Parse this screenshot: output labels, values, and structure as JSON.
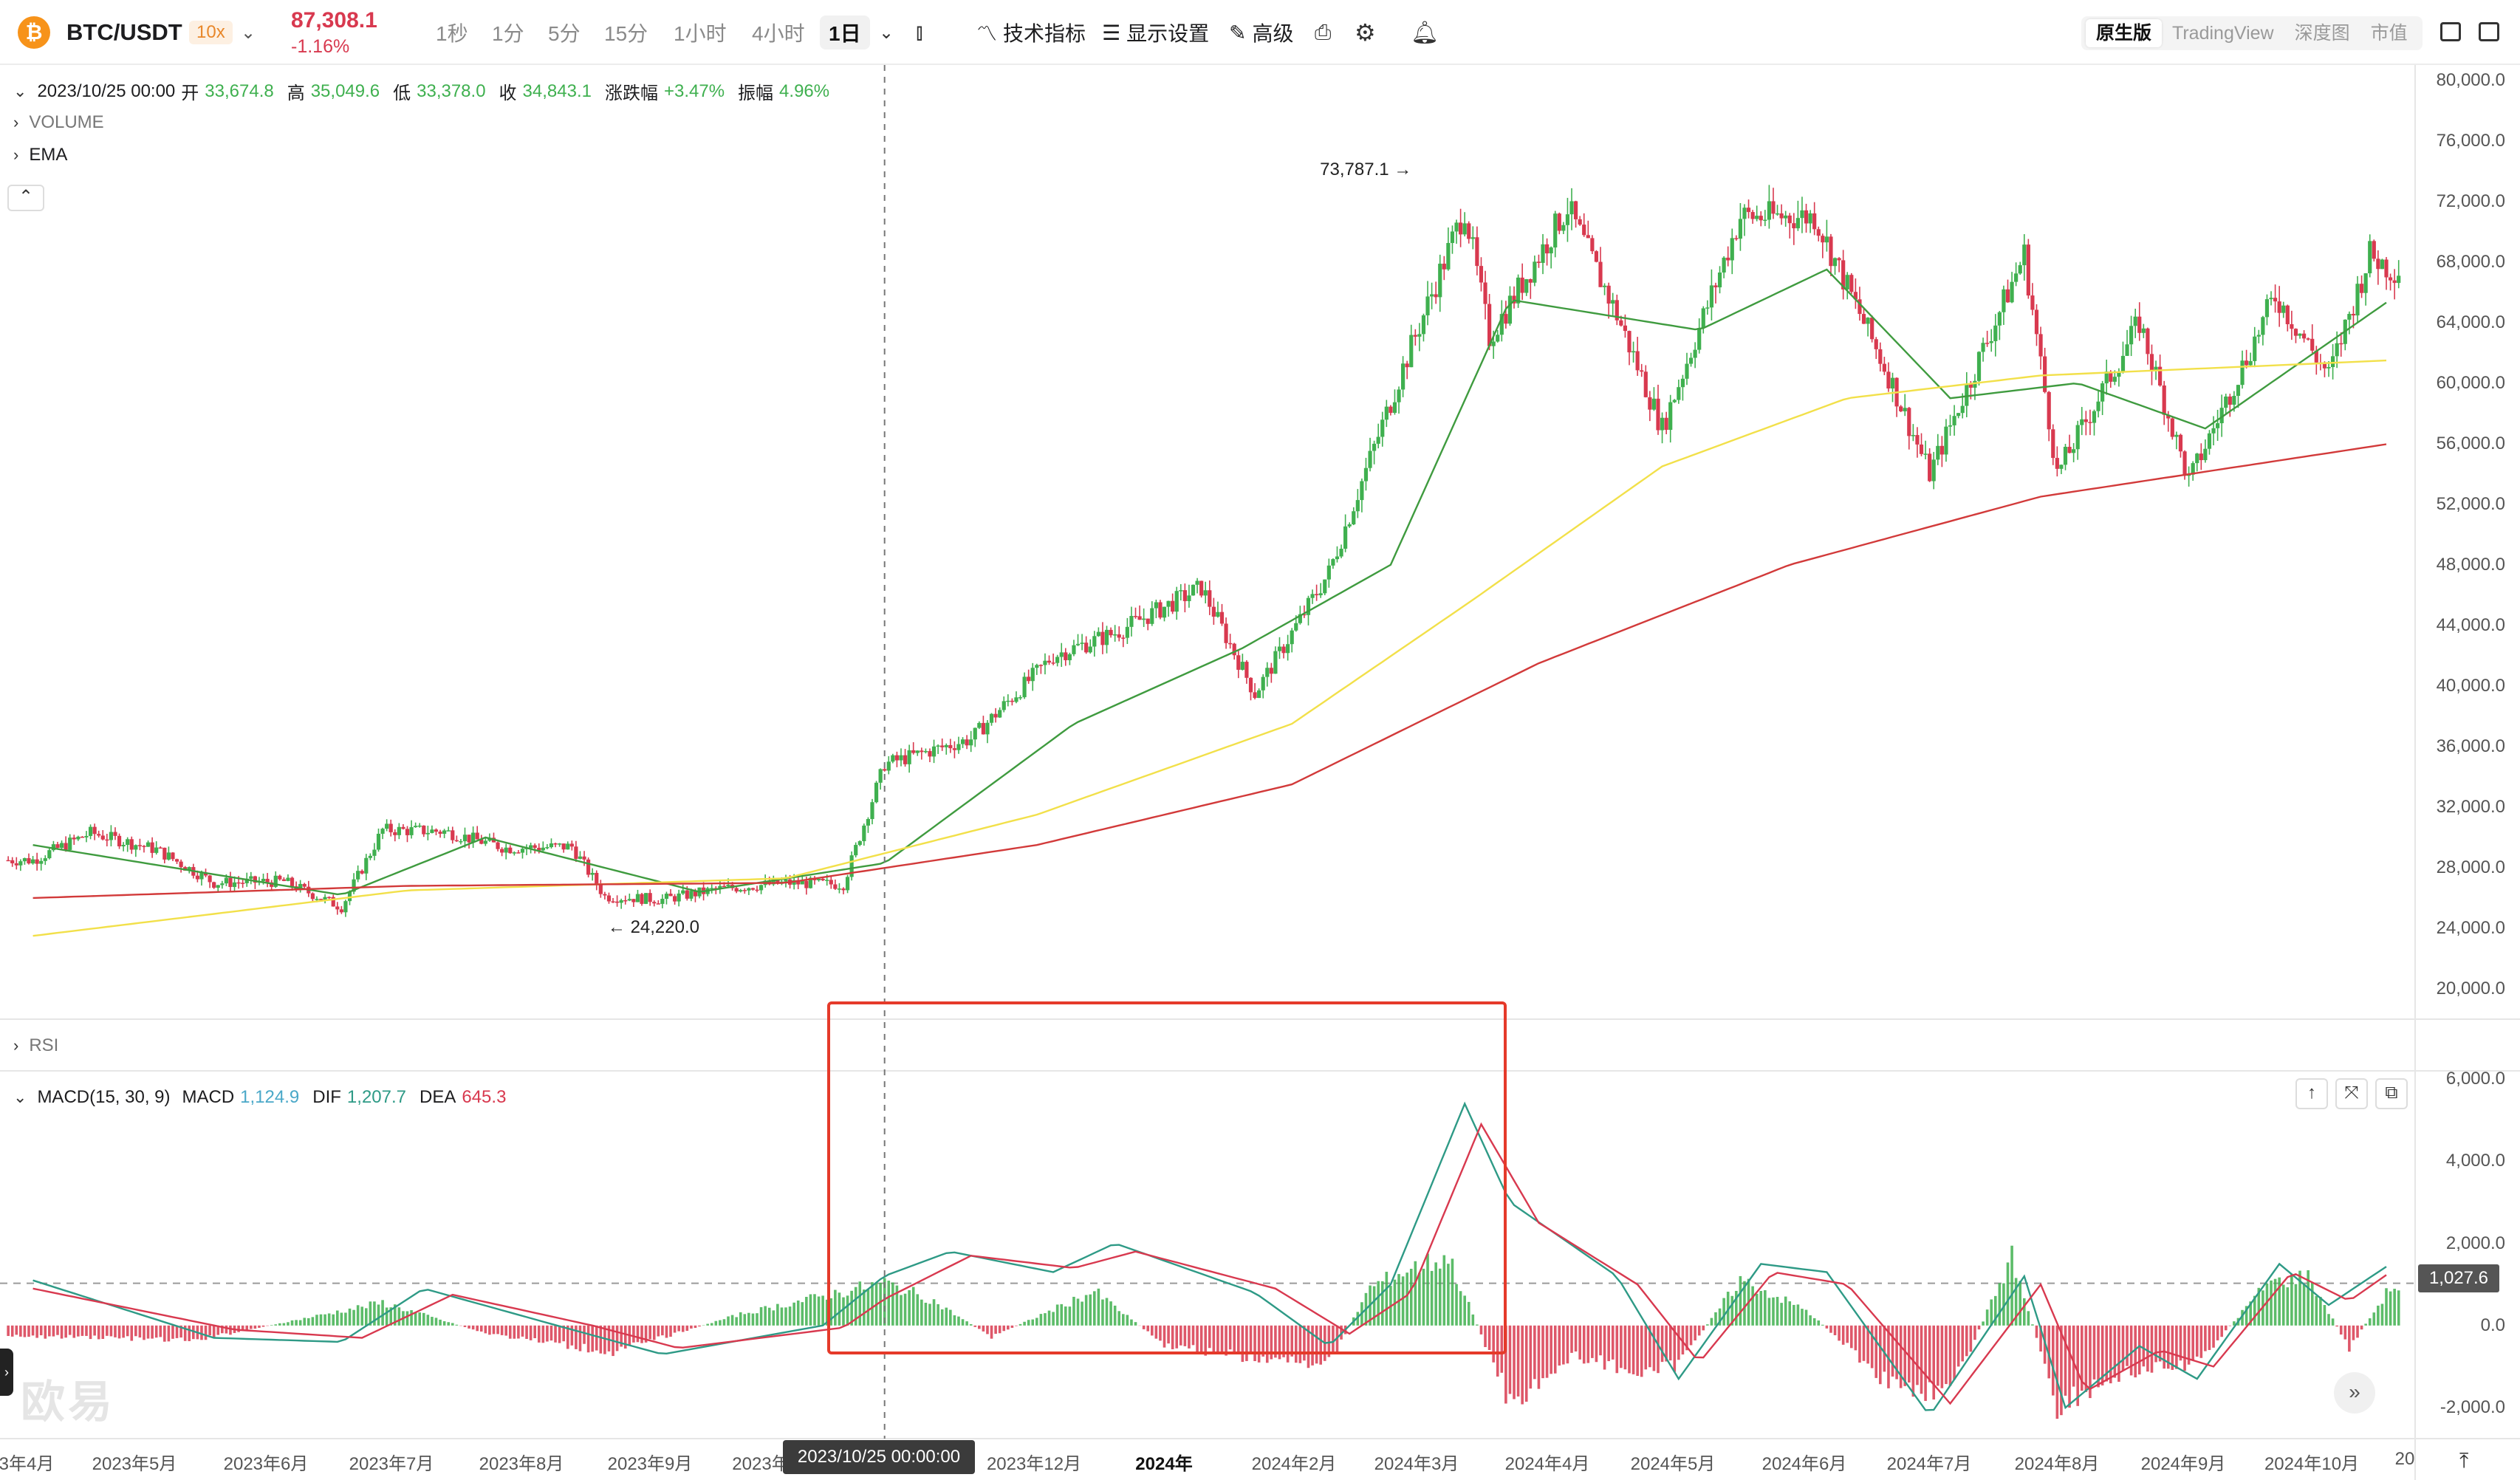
{
  "header": {
    "coin_icon": "bitcoin-icon",
    "pair": "BTC/USDT",
    "leverage": "10x",
    "price": "87,308.1",
    "change": "-1.16%",
    "timeframes": [
      "1秒",
      "1分",
      "5分",
      "15分",
      "1小时",
      "4小时"
    ],
    "active_timeframe": "1日",
    "tools": {
      "indicators": "技术指标",
      "display": "显示设置",
      "advanced": "高级"
    },
    "views": [
      "原生版",
      "TradingView",
      "深度图",
      "市值"
    ],
    "active_view": "原生版"
  },
  "ohlc_legend": {
    "date": "2023/10/25 00:00",
    "open_label": "开",
    "open": "33,674.8",
    "high_label": "高",
    "high": "35,049.6",
    "low_label": "低",
    "low": "33,378.0",
    "close_label": "收",
    "close": "34,843.1",
    "chg_label": "涨跌幅",
    "chg": "+3.47%",
    "amp_label": "振幅",
    "amp": "4.96%"
  },
  "indicator_rows": {
    "volume": "VOLUME",
    "ema": "EMA",
    "rsi": "RSI"
  },
  "macd_legend": {
    "name": "MACD(15, 30, 9)",
    "macd_label": "MACD",
    "macd": "1,124.9",
    "dif_label": "DIF",
    "dif": "1,207.7",
    "dea_label": "DEA",
    "dea": "645.3"
  },
  "annotations": {
    "high": "73,787.1",
    "low": "24,220.0"
  },
  "crosshair_label": "2023/10/25 00:00:00",
  "macd_last_value": "1,027.6",
  "watermark": "欧易",
  "colors": {
    "up": "#3fb04f",
    "down": "#d8394f",
    "ema_short": "#3f9b3f",
    "ema_mid": "#f2e04a",
    "ema_long": "#d23a3a",
    "highlight": "#e53a2a"
  },
  "chart_data": [
    {
      "type": "candlestick",
      "title": "",
      "x_axis": [
        "3年4月",
        "2023年5月",
        "2023年6月",
        "2023年7月",
        "2023年8月",
        "2023年9月",
        "2023年",
        "2023年12月",
        "2024年",
        "2024年2月",
        "2024年3月",
        "2024年4月",
        "2024年5月",
        "2024年6月",
        "2024年7月",
        "2024年8月",
        "2024年9月",
        "2024年10月",
        "20"
      ],
      "y_ticks": [
        "80,000.0",
        "76,000.0",
        "72,000.0",
        "68,000.0",
        "64,000.0",
        "60,000.0",
        "56,000.0",
        "52,000.0",
        "48,000.0",
        "44,000.0",
        "40,000.0",
        "36,000.0",
        "32,000.0",
        "28,000.0",
        "24,000.0",
        "20,000.0"
      ],
      "y_tick_values": [
        80000,
        76000,
        72000,
        68000,
        64000,
        60000,
        56000,
        52000,
        48000,
        44000,
        40000,
        36000,
        32000,
        28000,
        24000,
        20000
      ],
      "ylim": [
        18000,
        81000
      ],
      "close_path_points": [
        [
          "2023-04-01",
          28500
        ],
        [
          "2023-04-15",
          30300
        ],
        [
          "2023-05-01",
          29200
        ],
        [
          "2023-05-15",
          27000
        ],
        [
          "2023-06-01",
          27100
        ],
        [
          "2023-06-15",
          25400
        ],
        [
          "2023-06-25",
          30500
        ],
        [
          "2023-07-10",
          30400
        ],
        [
          "2023-07-25",
          29300
        ],
        [
          "2023-08-10",
          29400
        ],
        [
          "2023-08-18",
          26100
        ],
        [
          "2023-09-01",
          25900
        ],
        [
          "2023-09-15",
          26600
        ],
        [
          "2023-10-01",
          27000
        ],
        [
          "2023-10-15",
          26900
        ],
        [
          "2023-10-25",
          34843
        ],
        [
          "2023-11-15",
          36500
        ],
        [
          "2023-12-05",
          42000
        ],
        [
          "2023-12-20",
          43500
        ],
        [
          "2024-01-10",
          46500
        ],
        [
          "2024-01-23",
          39500
        ],
        [
          "2024-02-10",
          47500
        ],
        [
          "2024-02-28",
          61000
        ],
        [
          "2024-03-14",
          71500
        ],
        [
          "2024-03-20",
          63000
        ],
        [
          "2024-04-08",
          71600
        ],
        [
          "2024-04-20",
          64500
        ],
        [
          "2024-05-01",
          57000
        ],
        [
          "2024-05-20",
          71000
        ],
        [
          "2024-06-07",
          71000
        ],
        [
          "2024-06-25",
          60500
        ],
        [
          "2024-07-05",
          54000
        ],
        [
          "2024-07-28",
          68500
        ],
        [
          "2024-08-05",
          54000
        ],
        [
          "2024-08-25",
          64000
        ],
        [
          "2024-09-06",
          53500
        ],
        [
          "2024-09-27",
          65800
        ],
        [
          "2024-10-10",
          60500
        ],
        [
          "2024-10-20",
          68500
        ],
        [
          "2024-10-25",
          67500
        ]
      ],
      "ema_series": [
        {
          "color": "#3f9b3f",
          "points": [
            [
              "2023-04-01",
              29500
            ],
            [
              "2023-06-15",
              26200
            ],
            [
              "2023-07-20",
              30000
            ],
            [
              "2023-09-10",
              26400
            ],
            [
              "2023-10-25",
              28300
            ],
            [
              "2023-12-10",
              37500
            ],
            [
              "2024-01-20",
              42500
            ],
            [
              "2024-02-25",
              48000
            ],
            [
              "2024-03-25",
              65500
            ],
            [
              "2024-05-10",
              63500
            ],
            [
              "2024-06-10",
              67500
            ],
            [
              "2024-07-10",
              59000
            ],
            [
              "2024-08-10",
              60000
            ],
            [
              "2024-09-10",
              57000
            ],
            [
              "2024-10-25",
              65500
            ]
          ]
        },
        {
          "color": "#f2e04a",
          "points": [
            [
              "2023-04-01",
              23500
            ],
            [
              "2023-07-01",
              26500
            ],
            [
              "2023-10-01",
              27300
            ],
            [
              "2023-12-01",
              31500
            ],
            [
              "2024-02-01",
              37500
            ],
            [
              "2024-03-15",
              45500
            ],
            [
              "2024-05-01",
              54500
            ],
            [
              "2024-06-15",
              59000
            ],
            [
              "2024-08-01",
              60500
            ],
            [
              "2024-10-25",
              61500
            ]
          ]
        },
        {
          "color": "#d23a3a",
          "points": [
            [
              "2023-04-01",
              26000
            ],
            [
              "2023-07-01",
              26800
            ],
            [
              "2023-10-01",
              27000
            ],
            [
              "2023-12-01",
              29500
            ],
            [
              "2024-02-01",
              33500
            ],
            [
              "2024-04-01",
              41500
            ],
            [
              "2024-06-01",
              48000
            ],
            [
              "2024-08-01",
              52500
            ],
            [
              "2024-10-25",
              56000
            ]
          ]
        }
      ],
      "annotations": [
        {
          "date": "2024-03-14",
          "value": 73787.1,
          "label": "73,787.1"
        },
        {
          "date": "2023-08-18",
          "value": 24220.0,
          "label": "24,220.0"
        }
      ]
    },
    {
      "type": "macd",
      "title": "MACD(15, 30, 9)",
      "y_ticks": [
        "6,000.0",
        "4,000.0",
        "2,000.0",
        "0.0",
        "-2,000.0"
      ],
      "y_tick_values": [
        6000,
        4000,
        2000,
        0,
        -2000
      ],
      "ylim": [
        -2700,
        6200
      ],
      "dif": [
        [
          "2023-04-01",
          1100
        ],
        [
          "2023-05-15",
          -300
        ],
        [
          "2023-06-15",
          -400
        ],
        [
          "2023-07-05",
          900
        ],
        [
          "2023-08-10",
          -100
        ],
        [
          "2023-09-01",
          -700
        ],
        [
          "2023-10-10",
          0
        ],
        [
          "2023-10-25",
          1207.7
        ],
        [
          "2023-11-10",
          1800
        ],
        [
          "2023-12-05",
          1300
        ],
        [
          "2023-12-20",
          2000
        ],
        [
          "2024-01-23",
          800
        ],
        [
          "2024-02-10",
          -500
        ],
        [
          "2024-02-25",
          1000
        ],
        [
          "2024-03-14",
          5400
        ],
        [
          "2024-03-25",
          3000
        ],
        [
          "2024-04-20",
          1200
        ],
        [
          "2024-05-05",
          -1300
        ],
        [
          "2024-05-25",
          1500
        ],
        [
          "2024-06-10",
          1300
        ],
        [
          "2024-07-05",
          -2200
        ],
        [
          "2024-07-28",
          1200
        ],
        [
          "2024-08-07",
          -2000
        ],
        [
          "2024-08-25",
          -500
        ],
        [
          "2024-09-08",
          -1300
        ],
        [
          "2024-09-28",
          1500
        ],
        [
          "2024-10-10",
          500
        ],
        [
          "2024-10-25",
          1500
        ]
      ],
      "dea": [
        [
          "2023-04-01",
          900
        ],
        [
          "2023-05-20",
          -100
        ],
        [
          "2023-06-20",
          -300
        ],
        [
          "2023-07-12",
          750
        ],
        [
          "2023-08-15",
          0
        ],
        [
          "2023-09-05",
          -550
        ],
        [
          "2023-10-15",
          -50
        ],
        [
          "2023-10-25",
          645.3
        ],
        [
          "2023-11-15",
          1700
        ],
        [
          "2023-12-10",
          1400
        ],
        [
          "2023-12-25",
          1800
        ],
        [
          "2024-01-28",
          900
        ],
        [
          "2024-02-15",
          -200
        ],
        [
          "2024-03-01",
          800
        ],
        [
          "2024-03-18",
          4900
        ],
        [
          "2024-04-01",
          2500
        ],
        [
          "2024-04-25",
          1000
        ],
        [
          "2024-05-10",
          -900
        ],
        [
          "2024-05-28",
          1300
        ],
        [
          "2024-06-15",
          1000
        ],
        [
          "2024-07-10",
          -1900
        ],
        [
          "2024-08-01",
          1000
        ],
        [
          "2024-08-12",
          -1600
        ],
        [
          "2024-08-30",
          -600
        ],
        [
          "2024-09-12",
          -1000
        ],
        [
          "2024-10-01",
          1300
        ],
        [
          "2024-10-15",
          600
        ],
        [
          "2024-10-25",
          1300
        ]
      ],
      "hist": [
        [
          "2023-04-15",
          -300
        ],
        [
          "2023-05-10",
          -400
        ],
        [
          "2023-06-25",
          600
        ],
        [
          "2023-07-20",
          -200
        ],
        [
          "2023-08-20",
          -700
        ],
        [
          "2023-09-20",
          300
        ],
        [
          "2023-10-25",
          1124.9
        ],
        [
          "2023-11-05",
          700
        ],
        [
          "2023-11-20",
          -300
        ],
        [
          "2023-12-15",
          900
        ],
        [
          "2024-01-01",
          -500
        ],
        [
          "2024-01-25",
          -900
        ],
        [
          "2024-02-10",
          -1000
        ],
        [
          "2024-02-20",
          1000
        ],
        [
          "2024-03-01",
          1500
        ],
        [
          "2024-03-10",
          1800
        ],
        [
          "2024-03-25",
          -2000
        ],
        [
          "2024-04-10",
          -800
        ],
        [
          "2024-04-28",
          -1300
        ],
        [
          "2024-05-05",
          -1000
        ],
        [
          "2024-05-20",
          1200
        ],
        [
          "2024-06-05",
          400
        ],
        [
          "2024-06-25",
          -1500
        ],
        [
          "2024-07-10",
          -1800
        ],
        [
          "2024-07-25",
          1800
        ],
        [
          "2024-08-05",
          -2100
        ],
        [
          "2024-08-20",
          -1300
        ],
        [
          "2024-09-08",
          -1000
        ],
        [
          "2024-09-25",
          1100
        ],
        [
          "2024-10-05",
          1300
        ],
        [
          "2024-10-15",
          -600
        ],
        [
          "2024-10-25",
          1000
        ]
      ]
    }
  ]
}
